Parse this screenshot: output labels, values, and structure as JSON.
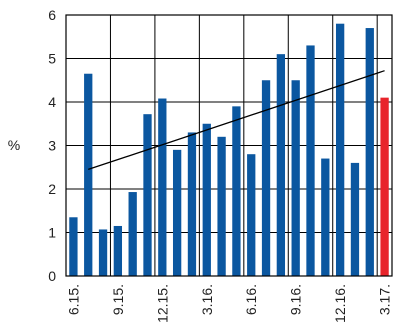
{
  "chart_data": {
    "type": "bar",
    "ylabel": "%",
    "ylim": [
      0,
      6
    ],
    "y_ticks": [
      "0",
      "1",
      "2",
      "3",
      "4",
      "5",
      "6"
    ],
    "grid": true,
    "categories": [
      "6.15.",
      "",
      "",
      "9.15.",
      "",
      "",
      "12.15.",
      "",
      "",
      "3.16.",
      "",
      "",
      "6.16.",
      "",
      "",
      "9.16.",
      "",
      "",
      "12.16.",
      "",
      "",
      "3.17."
    ],
    "values": [
      1.35,
      4.65,
      1.07,
      1.15,
      1.93,
      3.72,
      4.08,
      2.9,
      3.3,
      3.5,
      3.2,
      3.9,
      2.8,
      4.5,
      5.1,
      4.5,
      5.3,
      2.7,
      5.8,
      2.6,
      5.7,
      4.1
    ],
    "highlight_index": 21,
    "colors": {
      "bar": "#0b57a0",
      "highlight": "#e8242b",
      "trend": "#000000",
      "grid": "#000000"
    },
    "trendline": {
      "type": "linear",
      "start": 2.45,
      "end": 4.72
    }
  }
}
